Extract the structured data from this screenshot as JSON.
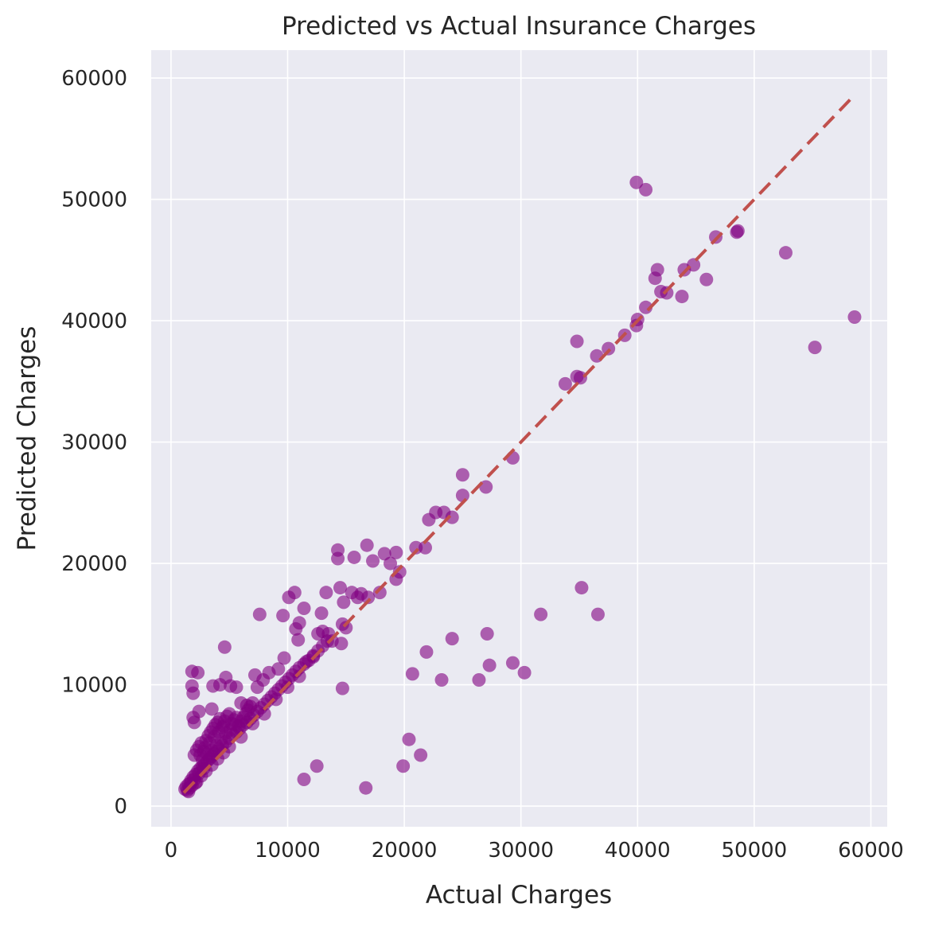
{
  "chart_data": {
    "type": "scatter",
    "title": "Predicted vs Actual Insurance Charges",
    "xlabel": "Actual Charges",
    "ylabel": "Predicted Charges",
    "xlim": [
      -1700,
      61400
    ],
    "ylim": [
      -1700,
      62300
    ],
    "xticks": [
      0,
      10000,
      20000,
      30000,
      40000,
      50000,
      60000
    ],
    "yticks": [
      0,
      10000,
      20000,
      30000,
      40000,
      50000,
      60000
    ],
    "xtick_labels": [
      "0",
      "10000",
      "20000",
      "30000",
      "40000",
      "50000",
      "60000"
    ],
    "ytick_labels": [
      "0",
      "10000",
      "20000",
      "30000",
      "40000",
      "50000",
      "60000"
    ],
    "grid": true,
    "background_color": "#eaeaf2",
    "point_color": "#800080",
    "reference_line": {
      "from": [
        1100,
        1100
      ],
      "to": [
        58600,
        58600
      ],
      "color": "#c0504d",
      "style": "dashed"
    },
    "points": [
      [
        1200,
        1400
      ],
      [
        1300,
        1600
      ],
      [
        1500,
        1800
      ],
      [
        1700,
        2100
      ],
      [
        1900,
        2400
      ],
      [
        2100,
        2600
      ],
      [
        2300,
        2900
      ],
      [
        2500,
        3100
      ],
      [
        2700,
        3300
      ],
      [
        2900,
        3500
      ],
      [
        3100,
        3700
      ],
      [
        3300,
        3900
      ],
      [
        3500,
        4100
      ],
      [
        3700,
        4300
      ],
      [
        3900,
        4500
      ],
      [
        4100,
        4700
      ],
      [
        4400,
        5000
      ],
      [
        4700,
        5300
      ],
      [
        5000,
        5600
      ],
      [
        5300,
        5900
      ],
      [
        5600,
        6100
      ],
      [
        5900,
        6400
      ],
      [
        6200,
        6700
      ],
      [
        6500,
        6900
      ],
      [
        6800,
        7200
      ],
      [
        7100,
        7500
      ],
      [
        7400,
        7800
      ],
      [
        7700,
        8100
      ],
      [
        8000,
        8400
      ],
      [
        8300,
        8700
      ],
      [
        8600,
        9000
      ],
      [
        8900,
        9300
      ],
      [
        9200,
        9600
      ],
      [
        9500,
        9900
      ],
      [
        9800,
        10200
      ],
      [
        10100,
        10500
      ],
      [
        10400,
        10800
      ],
      [
        10700,
        11100
      ],
      [
        11000,
        11400
      ],
      [
        11400,
        11700
      ],
      [
        11800,
        12000
      ],
      [
        12200,
        12400
      ],
      [
        12600,
        12800
      ],
      [
        13000,
        13200
      ],
      [
        13400,
        13600
      ],
      [
        1400,
        1300
      ],
      [
        1800,
        1700
      ],
      [
        2200,
        2000
      ],
      [
        2600,
        2500
      ],
      [
        3000,
        2900
      ],
      [
        3500,
        3400
      ],
      [
        4000,
        3900
      ],
      [
        4500,
        4400
      ],
      [
        5000,
        4900
      ],
      [
        6000,
        5700
      ],
      [
        7000,
        6800
      ],
      [
        8000,
        7600
      ],
      [
        9000,
        8800
      ],
      [
        10000,
        9800
      ],
      [
        11000,
        10700
      ],
      [
        2000,
        4200
      ],
      [
        2200,
        4600
      ],
      [
        2400,
        4900
      ],
      [
        2600,
        5200
      ],
      [
        2800,
        4500
      ],
      [
        3000,
        5400
      ],
      [
        3200,
        5800
      ],
      [
        3400,
        6100
      ],
      [
        3600,
        6400
      ],
      [
        3800,
        6700
      ],
      [
        4000,
        6900
      ],
      [
        4200,
        7200
      ],
      [
        4400,
        6500
      ],
      [
        4600,
        7000
      ],
      [
        4800,
        7400
      ],
      [
        5000,
        7600
      ],
      [
        5200,
        6800
      ],
      [
        5400,
        7100
      ],
      [
        5600,
        7300
      ],
      [
        5800,
        6600
      ],
      [
        6000,
        7000
      ],
      [
        6200,
        7300
      ],
      [
        6400,
        7600
      ],
      [
        6600,
        7900
      ],
      [
        6800,
        8200
      ],
      [
        7000,
        8500
      ],
      [
        2500,
        4200
      ],
      [
        2900,
        4800
      ],
      [
        3300,
        5200
      ],
      [
        3700,
        5700
      ],
      [
        4100,
        6100
      ],
      [
        4500,
        6600
      ],
      [
        2700,
        3800
      ],
      [
        3100,
        4300
      ],
      [
        3500,
        4600
      ],
      [
        3900,
        5000
      ],
      [
        4300,
        5500
      ],
      [
        4700,
        6000
      ],
      [
        5100,
        6300
      ],
      [
        5500,
        6700
      ],
      [
        1800,
        11100
      ],
      [
        2300,
        11000
      ],
      [
        1800,
        9900
      ],
      [
        1900,
        9300
      ],
      [
        1900,
        7300
      ],
      [
        2000,
        6900
      ],
      [
        2400,
        7800
      ],
      [
        3500,
        8000
      ],
      [
        3600,
        9900
      ],
      [
        4200,
        10000
      ],
      [
        4600,
        13100
      ],
      [
        4700,
        10600
      ],
      [
        5100,
        9900
      ],
      [
        5600,
        9800
      ],
      [
        6000,
        8500
      ],
      [
        6500,
        8300
      ],
      [
        7200,
        10800
      ],
      [
        7400,
        9800
      ],
      [
        7600,
        15800
      ],
      [
        7900,
        10400
      ],
      [
        8400,
        11000
      ],
      [
        9200,
        11300
      ],
      [
        9600,
        15700
      ],
      [
        9700,
        12200
      ],
      [
        10100,
        17200
      ],
      [
        10600,
        17600
      ],
      [
        10700,
        14600
      ],
      [
        11000,
        15100
      ],
      [
        10900,
        13700
      ],
      [
        11400,
        16300
      ],
      [
        11600,
        11900
      ],
      [
        12200,
        12300
      ],
      [
        12600,
        14200
      ],
      [
        12900,
        15900
      ],
      [
        13000,
        14400
      ],
      [
        13300,
        17600
      ],
      [
        13500,
        14200
      ],
      [
        13800,
        13600
      ],
      [
        14300,
        21100
      ],
      [
        14300,
        20400
      ],
      [
        14500,
        18000
      ],
      [
        14600,
        13400
      ],
      [
        14700,
        15000
      ],
      [
        14800,
        16800
      ],
      [
        15000,
        14700
      ],
      [
        15500,
        17600
      ],
      [
        15700,
        20500
      ],
      [
        16000,
        17200
      ],
      [
        16300,
        17500
      ],
      [
        16800,
        21500
      ],
      [
        16900,
        17200
      ],
      [
        17300,
        20200
      ],
      [
        17900,
        17600
      ],
      [
        18300,
        20800
      ],
      [
        18800,
        20000
      ],
      [
        19300,
        20900
      ],
      [
        19300,
        18700
      ],
      [
        19600,
        19300
      ],
      [
        21000,
        21300
      ],
      [
        21800,
        21300
      ],
      [
        22100,
        23600
      ],
      [
        22700,
        24200
      ],
      [
        23400,
        24200
      ],
      [
        24100,
        23800
      ],
      [
        25000,
        25600
      ],
      [
        25000,
        27300
      ],
      [
        27000,
        26300
      ],
      [
        29300,
        28700
      ],
      [
        33800,
        34800
      ],
      [
        34800,
        35400
      ],
      [
        34800,
        38300
      ],
      [
        35100,
        35300
      ],
      [
        36500,
        37100
      ],
      [
        37500,
        37700
      ],
      [
        38900,
        38800
      ],
      [
        39900,
        39600
      ],
      [
        40000,
        40100
      ],
      [
        40700,
        41100
      ],
      [
        41500,
        43500
      ],
      [
        41700,
        44200
      ],
      [
        42000,
        42400
      ],
      [
        42500,
        42300
      ],
      [
        43800,
        42000
      ],
      [
        44000,
        44200
      ],
      [
        44800,
        44600
      ],
      [
        45900,
        43400
      ],
      [
        46700,
        46900
      ],
      [
        48500,
        47300
      ],
      [
        48600,
        47400
      ],
      [
        39900,
        51400
      ],
      [
        40700,
        50800
      ],
      [
        52700,
        45600
      ],
      [
        55200,
        37800
      ],
      [
        58600,
        40300
      ],
      [
        14700,
        9700
      ],
      [
        20700,
        10900
      ],
      [
        21900,
        12700
      ],
      [
        23200,
        10400
      ],
      [
        24100,
        13800
      ],
      [
        26400,
        10400
      ],
      [
        27100,
        14200
      ],
      [
        27300,
        11600
      ],
      [
        29300,
        11800
      ],
      [
        30300,
        11000
      ],
      [
        31700,
        15800
      ],
      [
        35200,
        18000
      ],
      [
        36600,
        15800
      ],
      [
        11400,
        2200
      ],
      [
        12500,
        3300
      ],
      [
        16700,
        1500
      ],
      [
        19900,
        3300
      ],
      [
        20400,
        5500
      ],
      [
        21400,
        4200
      ],
      [
        1500,
        1200
      ],
      [
        1600,
        1500
      ],
      [
        1700,
        1900
      ],
      [
        2000,
        2200
      ],
      [
        2100,
        1900
      ],
      [
        2400,
        2700
      ],
      [
        2800,
        3100
      ]
    ]
  }
}
